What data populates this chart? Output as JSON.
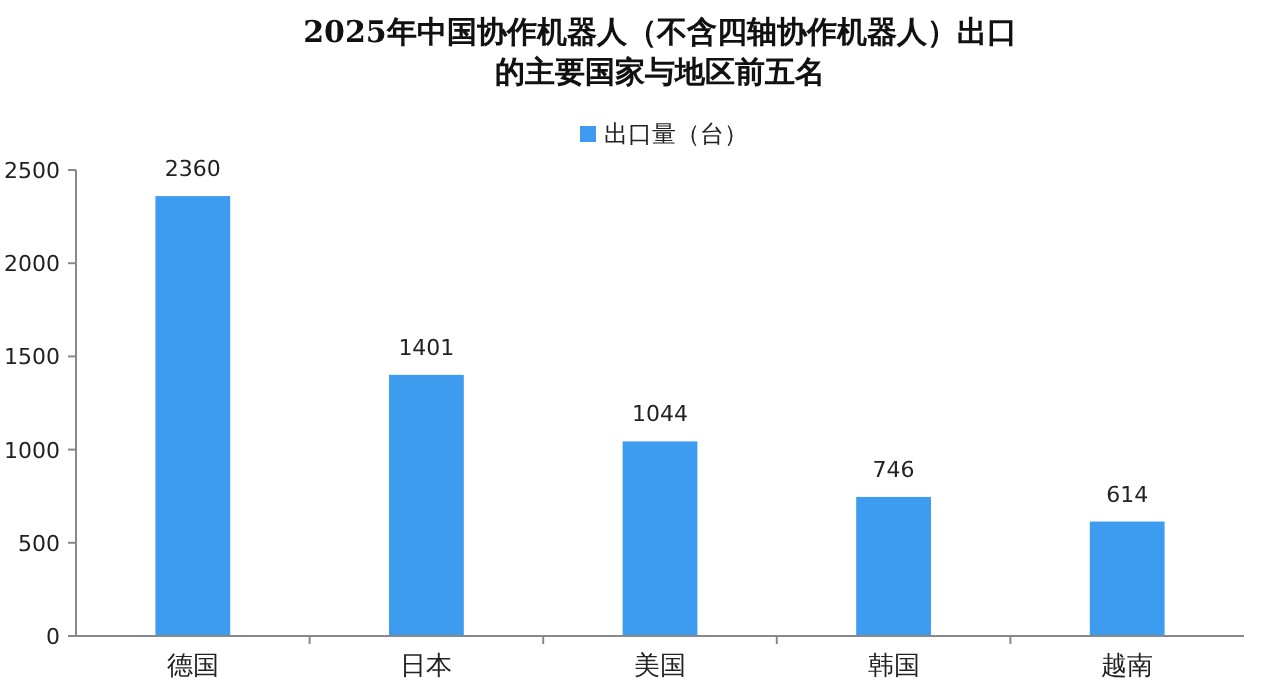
{
  "chart_data": {
    "type": "bar",
    "title": "2025年中国协作机器人（不含四轴协作机器人）出口的主要国家与地区前五名",
    "categories": [
      "德国",
      "日本",
      "美国",
      "韩国",
      "越南"
    ],
    "series": [
      {
        "name": "出口量（台）",
        "color": "#3d9bf0",
        "values": [
          2360,
          1401,
          1044,
          746,
          614
        ]
      }
    ],
    "ylim": [
      0,
      2500
    ],
    "yticks": [
      0,
      500,
      1000,
      1500,
      2000,
      2500
    ],
    "data_labels": true,
    "legend": "top",
    "grid": false
  }
}
